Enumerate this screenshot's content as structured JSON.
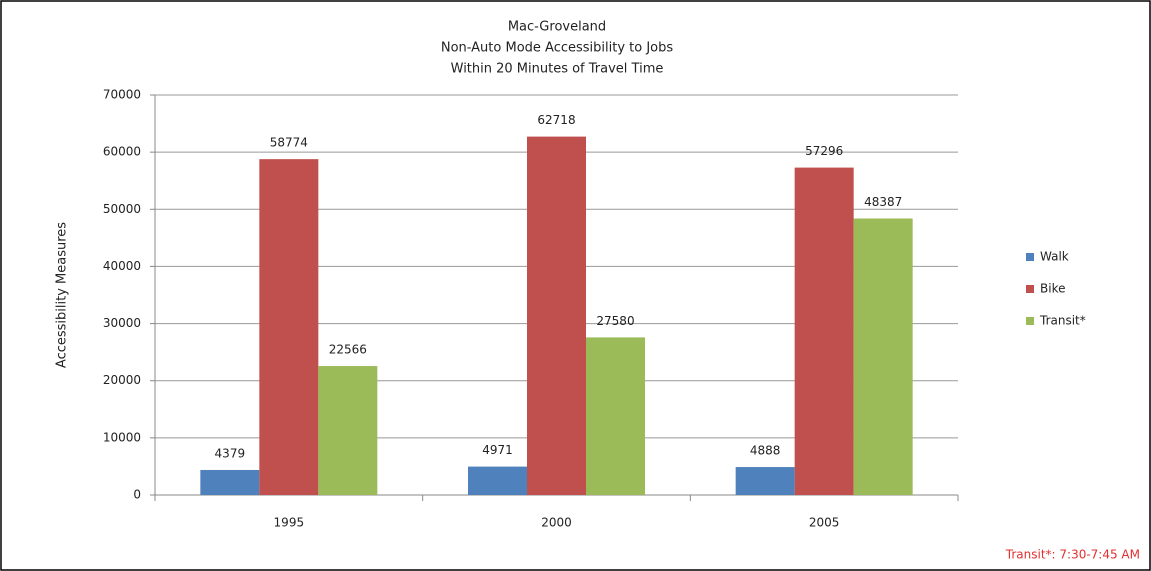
{
  "chart_data": {
    "type": "bar",
    "title": [
      "Mac-Groveland",
      "Non-Auto Mode Accessibility to Jobs",
      "Within 20 Minutes of Travel Time"
    ],
    "y_label": "Accessibility Measures",
    "categories": [
      "1995",
      "2000",
      "2005"
    ],
    "series": [
      {
        "name": "Walk",
        "color": "#4f81bd",
        "values": [
          4379,
          4971,
          4888
        ]
      },
      {
        "name": "Bike",
        "color": "#c0504d",
        "values": [
          58774,
          62718,
          57296
        ]
      },
      {
        "name": "Transit*",
        "color": "#9bbb59",
        "values": [
          22566,
          27580,
          48387
        ]
      }
    ],
    "ylim": [
      0,
      70000
    ],
    "yticks": [
      0,
      10000,
      20000,
      30000,
      40000,
      50000,
      60000,
      70000
    ],
    "grid": true,
    "legend": "right",
    "annotation": "Transit*: 7:30-7:45 AM"
  }
}
